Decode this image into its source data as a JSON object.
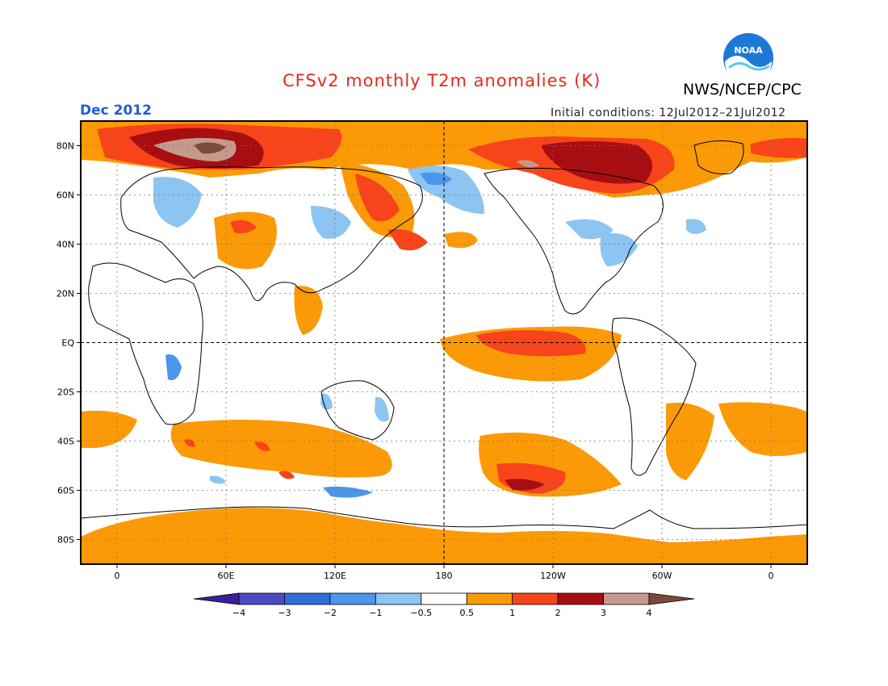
{
  "header": {
    "title": "CFSv2 monthly T2m anomalies (K)",
    "agency": "NWS/NCEP/CPC",
    "logo_text": "NOAA",
    "month": "Dec 2012",
    "initial_conditions": "Initial conditions: 12Jul2012–21Jul2012"
  },
  "colors": {
    "title": "#e8281a",
    "month": "#1e5fd8",
    "logo_blue": "#1e78d6",
    "logo_light": "#5cc8f0"
  },
  "axes": {
    "lat_labels": [
      "80N",
      "60N",
      "40N",
      "20N",
      "EQ",
      "20S",
      "40S",
      "60S",
      "80S"
    ],
    "lat_values": [
      80,
      60,
      40,
      20,
      0,
      -20,
      -40,
      -60,
      -80
    ],
    "lon_labels": [
      "0",
      "60E",
      "120E",
      "180",
      "120W",
      "60W",
      "0"
    ],
    "lon_values": [
      0,
      60,
      120,
      180,
      240,
      300,
      360
    ],
    "lat_range": [
      -90,
      90
    ],
    "lon_range": [
      -20,
      380
    ]
  },
  "colorbar": {
    "labels": [
      "−4",
      "−3",
      "−2",
      "−1",
      "−0.5",
      "0.5",
      "1",
      "2",
      "3",
      "4"
    ],
    "bins": [
      {
        "color": "#3a1e9e"
      },
      {
        "color": "#4a4ac6"
      },
      {
        "color": "#2e6ed8"
      },
      {
        "color": "#4a96ec"
      },
      {
        "color": "#8cc4f2"
      },
      {
        "color": "#ffffff"
      },
      {
        "color": "#fb9a06"
      },
      {
        "color": "#f8441a"
      },
      {
        "color": "#a70e12"
      },
      {
        "color": "#c49a8c"
      },
      {
        "color": "#7a4a3a"
      }
    ]
  }
}
